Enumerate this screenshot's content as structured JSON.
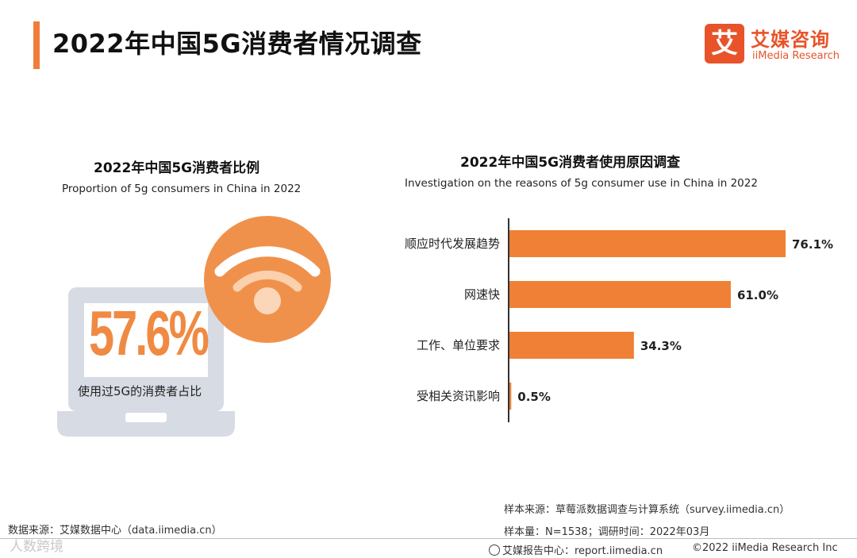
{
  "header": {
    "title": "2022年中国5G消费者情况调查",
    "accent_color": "#f07d3a"
  },
  "logo": {
    "glyph": "艾",
    "name_cn": "艾媒咨询",
    "name_en": "iiMedia Research",
    "color": "#e8532a"
  },
  "left_panel": {
    "title_cn": "2022年中国5G消费者比例",
    "title_en": "Proportion of 5g consumers in China in 2022",
    "big_value": "57.6%",
    "caption": "使用过5G的消费者占比"
  },
  "right_panel": {
    "title_cn": "2022年中国5G消费者使用原因调查",
    "title_en": "Investigation on the reasons of 5g consumer use in China in 2022"
  },
  "chart_data": [
    {
      "type": "pie",
      "title": "2022年中国5G消费者比例",
      "subtitle": "Proportion of 5g consumers in China in 2022",
      "categories": [
        "使用过5G的消费者占比"
      ],
      "values": [
        57.6
      ],
      "unit": "%"
    },
    {
      "type": "bar",
      "orientation": "horizontal",
      "title": "2022年中国5G消费者使用原因调查",
      "subtitle": "Investigation on the reasons of 5g consumer use in China in 2022",
      "categories": [
        "顺应时代发展趋势",
        "网速快",
        "工作、单位要求",
        "受相关资讯影响"
      ],
      "values": [
        76.1,
        61.0,
        34.3,
        0.5
      ],
      "labels": [
        "76.1%",
        "61.0%",
        "34.3%",
        "0.5%"
      ],
      "unit": "%",
      "xlim": [
        0,
        80
      ],
      "bar_color": "#f08035"
    }
  ],
  "footer": {
    "data_source": "数据来源：艾媒数据中心（data.iimedia.cn）",
    "sample_source": "样本来源：草莓派数据调查与计算系统（survey.iimedia.cn）",
    "sample_size": "样本量：N=1538；调研时间：2022年03月",
    "report_center": "艾媒报告中心：report.iimedia.cn",
    "copyright": "©2022  iiMedia Research  Inc",
    "watermark": "人数跨境"
  }
}
